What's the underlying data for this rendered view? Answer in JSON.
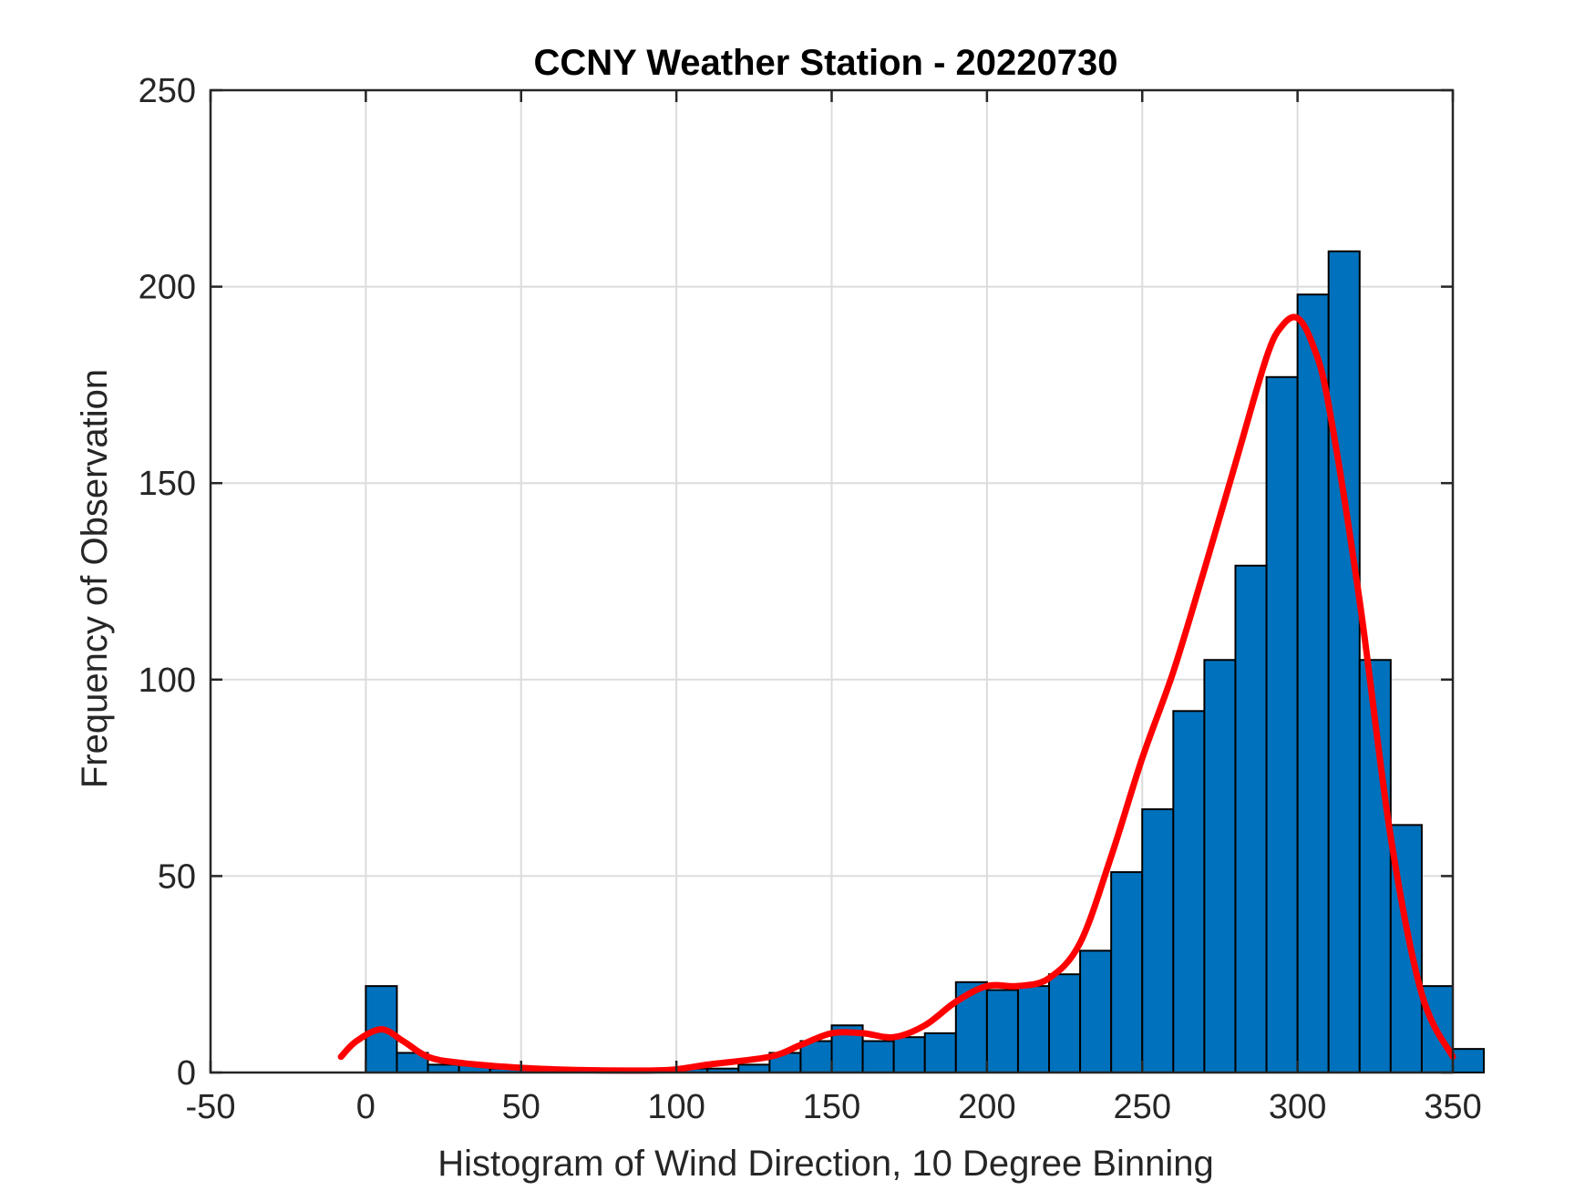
{
  "chart_data": {
    "type": "bar",
    "title": "CCNY Weather Station - 20220730",
    "xlabel": "Histogram of Wind Direction, 10 Degree Binning",
    "ylabel": "Frequency of Observation",
    "xlim": [
      -50,
      350
    ],
    "ylim": [
      0,
      250
    ],
    "xticks": [
      -50,
      0,
      50,
      100,
      150,
      200,
      250,
      300,
      350
    ],
    "yticks": [
      0,
      50,
      100,
      150,
      200,
      250
    ],
    "xtick_labels": [
      "-50",
      "0",
      "50",
      "100",
      "150",
      "200",
      "250",
      "300",
      "350"
    ],
    "ytick_labels": [
      "0",
      "50",
      "100",
      "150",
      "200",
      "250"
    ],
    "grid": true,
    "bin_width": 10,
    "bin_edges": [
      0,
      10,
      20,
      30,
      40,
      50,
      60,
      70,
      80,
      90,
      100,
      110,
      120,
      130,
      140,
      150,
      160,
      170,
      180,
      190,
      200,
      210,
      220,
      230,
      240,
      250,
      260,
      270,
      280,
      290,
      300,
      310,
      320,
      330,
      340,
      350
    ],
    "values": [
      22,
      5,
      2,
      2,
      1,
      1,
      0.5,
      0.5,
      0.5,
      0.5,
      1,
      1,
      2,
      5,
      8,
      12,
      8,
      9,
      10,
      23,
      21,
      22,
      25,
      31,
      51,
      67,
      92,
      105,
      129,
      177,
      198,
      209,
      105,
      63,
      22,
      6
    ],
    "bar_color": "#0072BD",
    "bar_edge_color": "#000000",
    "series": [
      {
        "type": "line",
        "color": "#FF0000",
        "x": [
          -8,
          -3,
          5,
          12,
          20,
          30,
          50,
          70,
          90,
          100,
          110,
          130,
          140,
          150,
          160,
          170,
          180,
          190,
          200,
          210,
          220,
          230,
          240,
          250,
          260,
          270,
          280,
          290,
          295,
          300,
          305,
          310,
          320,
          330,
          340,
          350
        ],
        "y": [
          4,
          8,
          11,
          8,
          4,
          2.5,
          1.2,
          0.6,
          0.5,
          0.8,
          2,
          4,
          7,
          10,
          10,
          9,
          12,
          18,
          22,
          22,
          24,
          33,
          55,
          80,
          102,
          128,
          155,
          182,
          190,
          192,
          185,
          170,
          120,
          60,
          20,
          4
        ]
      }
    ]
  }
}
